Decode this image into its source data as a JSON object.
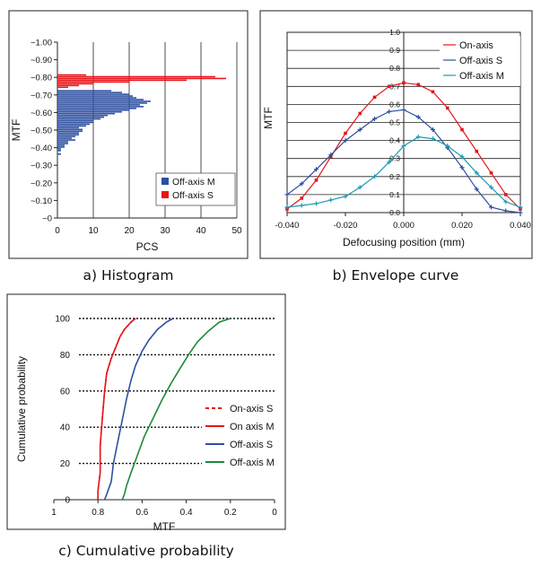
{
  "chart_data": [
    {
      "type": "bar",
      "orientation": "horizontal",
      "xlabel": "PCS",
      "ylabel": "MTF",
      "xlim": [
        0,
        50
      ],
      "ylim": [
        0,
        1.0
      ],
      "x_ticks": [
        "0",
        "10",
        "20",
        "30",
        "40",
        "50"
      ],
      "y_ticks": [
        "~0",
        "~0.10",
        "~0.20",
        "~0.30",
        "~0.40",
        "~0.50",
        "~0.60",
        "~0.70",
        "~0.80",
        "~0.90",
        "~1.00"
      ],
      "legend_position": "bottom-right",
      "caption": "a) Histogram",
      "series": [
        {
          "name": "Off-axis M",
          "color": "#2e4fa0",
          "bins": [
            0.36,
            0.38,
            0.39,
            0.4,
            0.41,
            0.42,
            0.43,
            0.44,
            0.45,
            0.46,
            0.47,
            0.48,
            0.49,
            0.5,
            0.51,
            0.52,
            0.53,
            0.54,
            0.55,
            0.56,
            0.57,
            0.58,
            0.59,
            0.6,
            0.61,
            0.62,
            0.63,
            0.64,
            0.65,
            0.66,
            0.67,
            0.68,
            0.69,
            0.7,
            0.71,
            0.72
          ],
          "counts": [
            1,
            1,
            1,
            2,
            2,
            3,
            3,
            5,
            4,
            5,
            6,
            6,
            7,
            7,
            6,
            8,
            9,
            10,
            10,
            12,
            13,
            14,
            16,
            18,
            20,
            22,
            24,
            23,
            25,
            26,
            24,
            22,
            21,
            20,
            18,
            15
          ]
        },
        {
          "name": "Off-axis S",
          "color": "#e8141a",
          "bins": [
            0.74,
            0.75,
            0.76,
            0.77,
            0.78,
            0.79,
            0.8,
            0.81
          ],
          "counts": [
            3,
            6,
            10,
            20,
            36,
            47,
            44,
            8
          ]
        }
      ]
    },
    {
      "type": "line",
      "xlabel": "Defocusing position (mm)",
      "ylabel": "MTF",
      "xlim": [
        -0.04,
        0.04
      ],
      "ylim": [
        0,
        1.0
      ],
      "x_ticks": [
        "-0.040",
        "-0.020",
        "0.000",
        "0.020",
        "0.040"
      ],
      "y_ticks": [
        "0.0",
        "0.1",
        "0.2",
        "0.3",
        "0.4",
        "0.5",
        "0.6",
        "0.7",
        "0.8",
        "0.9",
        "1.0"
      ],
      "grid": true,
      "legend_position": "top-right",
      "caption": "b) Envelope curve",
      "x": [
        -0.04,
        -0.035,
        -0.03,
        -0.025,
        -0.02,
        -0.015,
        -0.01,
        -0.005,
        0.0,
        0.005,
        0.01,
        0.015,
        0.02,
        0.025,
        0.03,
        0.035,
        0.04
      ],
      "series": [
        {
          "name": "On-axis",
          "color": "#e8141a",
          "values": [
            0.02,
            0.08,
            0.18,
            0.31,
            0.44,
            0.55,
            0.64,
            0.7,
            0.72,
            0.71,
            0.67,
            0.58,
            0.46,
            0.34,
            0.22,
            0.1,
            0.02
          ]
        },
        {
          "name": "Off-axis S",
          "color": "#2e4fa0",
          "values": [
            0.1,
            0.16,
            0.24,
            0.32,
            0.4,
            0.46,
            0.52,
            0.56,
            0.57,
            0.53,
            0.46,
            0.36,
            0.25,
            0.13,
            0.03,
            0.01,
            0.0
          ]
        },
        {
          "name": "Off-axis M",
          "color": "#1e9ab5",
          "values": [
            0.03,
            0.04,
            0.05,
            0.07,
            0.09,
            0.14,
            0.2,
            0.28,
            0.37,
            0.42,
            0.41,
            0.37,
            0.31,
            0.22,
            0.14,
            0.06,
            0.03
          ]
        }
      ]
    },
    {
      "type": "line",
      "xlabel": "MTF",
      "ylabel": "Cumulative probability",
      "xlim": [
        1,
        0
      ],
      "ylim": [
        0,
        100
      ],
      "x_ticks": [
        "1",
        "0.8",
        "0.6",
        "0.4",
        "0.2",
        "0"
      ],
      "y_ticks": [
        "0",
        "20",
        "40",
        "60",
        "80",
        "100"
      ],
      "grid": true,
      "legend_position": "bottom-right",
      "caption": "c) Cumulative probability",
      "series": [
        {
          "name": "On-axis S",
          "color": "#e8141a",
          "dashed": true,
          "x": [
            0.8,
            0.8,
            0.79,
            0.79,
            0.78,
            0.77,
            0.76,
            0.74,
            0.72,
            0.7,
            0.68,
            0.65,
            0.63
          ],
          "values": [
            0,
            5,
            15,
            30,
            45,
            60,
            70,
            78,
            84,
            90,
            94,
            98,
            100
          ]
        },
        {
          "name": "On axis M",
          "color": "#e8141a",
          "x": [
            0.8,
            0.8,
            0.79,
            0.79,
            0.78,
            0.77,
            0.76,
            0.74,
            0.72,
            0.7,
            0.68,
            0.65,
            0.63
          ],
          "values": [
            0,
            5,
            15,
            30,
            45,
            60,
            70,
            78,
            84,
            90,
            94,
            98,
            100
          ]
        },
        {
          "name": "Off-axis S",
          "color": "#2e4fa0",
          "x": [
            0.77,
            0.76,
            0.74,
            0.73,
            0.71,
            0.69,
            0.67,
            0.65,
            0.63,
            0.6,
            0.57,
            0.53,
            0.49,
            0.46
          ],
          "values": [
            0,
            3,
            10,
            20,
            32,
            44,
            56,
            66,
            74,
            82,
            88,
            94,
            98,
            100
          ]
        },
        {
          "name": "Off-axis M",
          "color": "#1e8a3a",
          "x": [
            0.69,
            0.68,
            0.67,
            0.65,
            0.62,
            0.59,
            0.55,
            0.51,
            0.47,
            0.43,
            0.39,
            0.35,
            0.3,
            0.25,
            0.2
          ],
          "values": [
            0,
            3,
            8,
            15,
            25,
            35,
            45,
            55,
            64,
            72,
            80,
            87,
            93,
            98,
            100
          ]
        }
      ]
    }
  ]
}
